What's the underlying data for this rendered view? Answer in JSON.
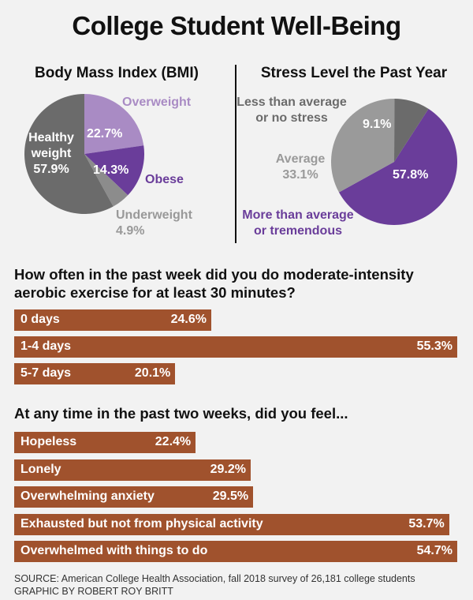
{
  "title": "College Student Well-Being",
  "chart_data": [
    {
      "type": "pie",
      "title": "Body Mass Index (BMI)",
      "slices": [
        {
          "label": "Overweight",
          "value": 22.7,
          "display": "22.7%",
          "color": "#a98bc4"
        },
        {
          "label": "Obese",
          "value": 14.3,
          "display": "14.3%",
          "color": "#6a3d9a"
        },
        {
          "label": "Underweight",
          "value": 4.9,
          "display": "4.9%",
          "color": "#8c8c8c"
        },
        {
          "label": "Healthy weight",
          "value": 57.9,
          "display": "57.9%",
          "color": "#6b6b6b"
        }
      ],
      "labels": {
        "healthy_line1": "Healthy",
        "healthy_line2": "weight",
        "healthy_value": "57.9%",
        "overweight": "Overweight",
        "overweight_value": "22.7%",
        "obese": "Obese",
        "obese_value": "14.3%",
        "underweight": "Underweight",
        "underweight_value": "4.9%"
      }
    },
    {
      "type": "pie",
      "title": "Stress Level the Past Year",
      "slices": [
        {
          "label": "More than average or tremendous",
          "value": 57.8,
          "display": "57.8%",
          "color": "#6a3d9a"
        },
        {
          "label": "Average",
          "value": 33.1,
          "display": "33.1%",
          "color": "#9a9a9a"
        },
        {
          "label": "Less than average or no stress",
          "value": 9.1,
          "display": "9.1%",
          "color": "#6b6b6b"
        }
      ],
      "labels": {
        "less_line1": "Less than average",
        "less_line2": "or no stress",
        "less_value": "9.1%",
        "average": "Average",
        "average_value": "33.1%",
        "more_line1": "More than average",
        "more_line2": "or tremendous",
        "more_value": "57.8%"
      }
    },
    {
      "type": "bar",
      "title": "How often in the past week did you do moderate-intensity aerobic exercise for at least 30 minutes?",
      "categories": [
        "0 days",
        "1-4 days",
        "5-7 days"
      ],
      "values": [
        24.6,
        55.3,
        20.1
      ],
      "value_labels": [
        "24.6%",
        "55.3%",
        "20.1%"
      ],
      "unit": "%"
    },
    {
      "type": "bar",
      "title": "At any time in the past two weeks, did you feel...",
      "categories": [
        "Hopeless",
        "Lonely",
        "Overwhelming anxiety",
        "Exhausted but not from physical activity",
        "Overwhelmed with things to do"
      ],
      "values": [
        22.4,
        29.2,
        29.5,
        53.7,
        54.7
      ],
      "value_labels": [
        "22.4%",
        "29.2%",
        "29.5%",
        "53.7%",
        "54.7%"
      ],
      "unit": "%"
    }
  ],
  "source_line1": "SOURCE: American College Health Association, fall 2018 survey of 26,181 college students",
  "source_line2": "GRAPHIC BY ROBERT ROY BRITT",
  "colors": {
    "bar": "#a0522d",
    "purple": "#6a3d9a",
    "light_purple": "#a98bc4",
    "gray": "#6b6b6b"
  }
}
